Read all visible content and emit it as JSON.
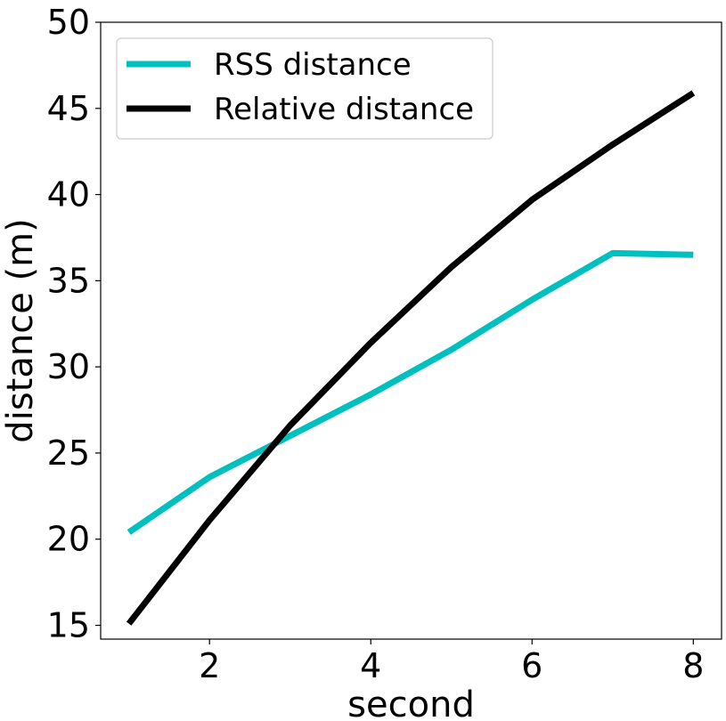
{
  "chart_data": {
    "type": "line",
    "xlabel": "second",
    "ylabel": "distance (m)",
    "xlim": [
      0.65,
      8.35
    ],
    "ylim": [
      14.2,
      50
    ],
    "xticks": [
      2,
      4,
      6,
      8
    ],
    "yticks": [
      15,
      20,
      25,
      30,
      35,
      40,
      45,
      50
    ],
    "grid": false,
    "legend_position": "top-left",
    "series": [
      {
        "name": "RSS distance",
        "color": "#00bfbf",
        "x": [
          1,
          2,
          3,
          4,
          5,
          6,
          7,
          8
        ],
        "y": [
          20.4,
          23.6,
          26.0,
          28.4,
          31.0,
          33.9,
          36.6,
          36.5
        ]
      },
      {
        "name": "Relative distance",
        "color": "#000000",
        "x": [
          1,
          2,
          3,
          4,
          5,
          6,
          7,
          8
        ],
        "y": [
          15.1,
          21.1,
          26.6,
          31.4,
          35.8,
          39.7,
          42.9,
          45.9
        ]
      }
    ]
  }
}
